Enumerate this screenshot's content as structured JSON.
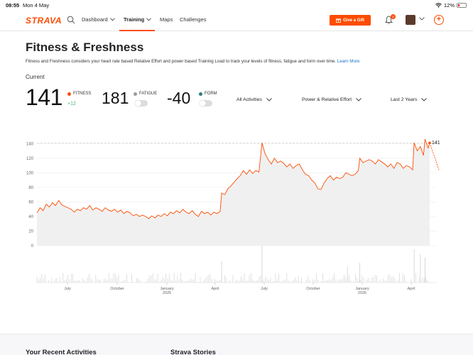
{
  "status": {
    "time": "08:55",
    "date": "Mon 4 May",
    "battery": "12%"
  },
  "nav": {
    "logo": "STRAVA",
    "items": [
      {
        "label": "Dashboard",
        "has_chevron": true
      },
      {
        "label": "Training",
        "has_chevron": true,
        "active": true
      },
      {
        "label": "Maps",
        "has_chevron": false
      },
      {
        "label": "Challenges",
        "has_chevron": false
      }
    ],
    "gift_label": "Give a Gift",
    "notification_count": "4"
  },
  "page": {
    "title": "Fitness & Freshness",
    "description": "Fitness and Freshness considers your heart rate based Relative Effort and power based Training Load to track your levels of fitness, fatigue and form over time.",
    "learn_more": "Learn More",
    "current_label": "Current"
  },
  "metrics": {
    "fitness": {
      "value": "141",
      "label": "FITNESS",
      "delta": "+12",
      "color": "#fc4c02"
    },
    "fatigue": {
      "value": "181",
      "label": "FATIGUE",
      "color": "#9b9b9b"
    },
    "form": {
      "value": "-40",
      "label": "FORM",
      "color": "#2f7d7d"
    }
  },
  "filters": {
    "activities": "All Activities",
    "effort": "Power & Relative Effort",
    "range": "Last 2 Years"
  },
  "chart_data": {
    "type": "area",
    "y_ticks": [
      0,
      20,
      40,
      60,
      80,
      100,
      120,
      140
    ],
    "ylim": [
      0,
      150
    ],
    "x_tick_labels": [
      {
        "label": "July",
        "year": ""
      },
      {
        "label": "October",
        "year": ""
      },
      {
        "label": "January",
        "year": "2025"
      },
      {
        "label": "April",
        "year": ""
      },
      {
        "label": "July",
        "year": ""
      },
      {
        "label": "October",
        "year": ""
      },
      {
        "label": "January",
        "year": "2026"
      },
      {
        "label": "April",
        "year": ""
      }
    ],
    "current_value_label": "141",
    "reference_line": 141,
    "fitness_color": "#fc4c02",
    "fitness_points": [
      [
        0,
        45
      ],
      [
        2,
        52
      ],
      [
        4,
        48
      ],
      [
        6,
        57
      ],
      [
        8,
        53
      ],
      [
        10,
        59
      ],
      [
        12,
        55
      ],
      [
        14,
        62
      ],
      [
        16,
        56
      ],
      [
        18,
        54
      ],
      [
        20,
        52
      ],
      [
        22,
        50
      ],
      [
        24,
        46
      ],
      [
        26,
        50
      ],
      [
        28,
        48
      ],
      [
        30,
        52
      ],
      [
        32,
        50
      ],
      [
        34,
        55
      ],
      [
        36,
        49
      ],
      [
        38,
        52
      ],
      [
        40,
        50
      ],
      [
        42,
        47
      ],
      [
        44,
        52
      ],
      [
        46,
        49
      ],
      [
        48,
        47
      ],
      [
        50,
        50
      ],
      [
        52,
        46
      ],
      [
        54,
        49
      ],
      [
        56,
        44
      ],
      [
        58,
        47
      ],
      [
        60,
        45
      ],
      [
        62,
        41
      ],
      [
        64,
        43
      ],
      [
        66,
        40
      ],
      [
        68,
        42
      ],
      [
        70,
        40
      ],
      [
        72,
        37
      ],
      [
        74,
        41
      ],
      [
        76,
        38
      ],
      [
        78,
        42
      ],
      [
        80,
        40
      ],
      [
        82,
        44
      ],
      [
        84,
        41
      ],
      [
        86,
        46
      ],
      [
        88,
        44
      ],
      [
        90,
        48
      ],
      [
        92,
        45
      ],
      [
        94,
        50
      ],
      [
        96,
        46
      ],
      [
        98,
        44
      ],
      [
        100,
        48
      ],
      [
        102,
        43
      ],
      [
        104,
        40
      ],
      [
        106,
        47
      ],
      [
        108,
        44
      ],
      [
        110,
        46
      ],
      [
        112,
        42
      ],
      [
        114,
        46
      ],
      [
        116,
        44
      ],
      [
        118,
        47
      ],
      [
        119,
        72
      ],
      [
        121,
        70
      ],
      [
        123,
        78
      ],
      [
        125,
        82
      ],
      [
        127,
        87
      ],
      [
        129,
        92
      ],
      [
        131,
        96
      ],
      [
        133,
        103
      ],
      [
        135,
        98
      ],
      [
        137,
        104
      ],
      [
        139,
        99
      ],
      [
        141,
        103
      ],
      [
        143,
        101
      ],
      [
        145,
        141
      ],
      [
        147,
        126
      ],
      [
        149,
        118
      ],
      [
        151,
        112
      ],
      [
        153,
        120
      ],
      [
        155,
        114
      ],
      [
        157,
        116
      ],
      [
        159,
        113
      ],
      [
        161,
        108
      ],
      [
        163,
        112
      ],
      [
        165,
        106
      ],
      [
        167,
        110
      ],
      [
        169,
        112
      ],
      [
        171,
        104
      ],
      [
        173,
        98
      ],
      [
        175,
        96
      ],
      [
        177,
        90
      ],
      [
        179,
        86
      ],
      [
        181,
        78
      ],
      [
        183,
        77
      ],
      [
        185,
        86
      ],
      [
        187,
        92
      ],
      [
        189,
        96
      ],
      [
        191,
        90
      ],
      [
        193,
        94
      ],
      [
        195,
        92
      ],
      [
        197,
        94
      ],
      [
        199,
        100
      ],
      [
        201,
        98
      ],
      [
        203,
        96
      ],
      [
        205,
        98
      ],
      [
        207,
        103
      ],
      [
        208,
        120
      ],
      [
        210,
        114
      ],
      [
        212,
        116
      ],
      [
        214,
        118
      ],
      [
        216,
        116
      ],
      [
        218,
        112
      ],
      [
        220,
        118
      ],
      [
        222,
        115
      ],
      [
        224,
        112
      ],
      [
        226,
        108
      ],
      [
        228,
        112
      ],
      [
        230,
        106
      ],
      [
        232,
        114
      ],
      [
        234,
        112
      ],
      [
        236,
        106
      ],
      [
        238,
        110
      ],
      [
        240,
        108
      ],
      [
        242,
        104
      ],
      [
        243,
        141
      ],
      [
        245,
        130
      ],
      [
        247,
        136
      ],
      [
        249,
        124
      ],
      [
        250,
        146
      ],
      [
        251,
        140
      ],
      [
        252,
        134
      ],
      [
        253,
        141
      ]
    ],
    "projection_points": [
      [
        253,
        141
      ],
      [
        259,
        104
      ]
    ]
  },
  "sections": {
    "recent": "Your Recent Activities",
    "stories": "Strava Stories"
  }
}
